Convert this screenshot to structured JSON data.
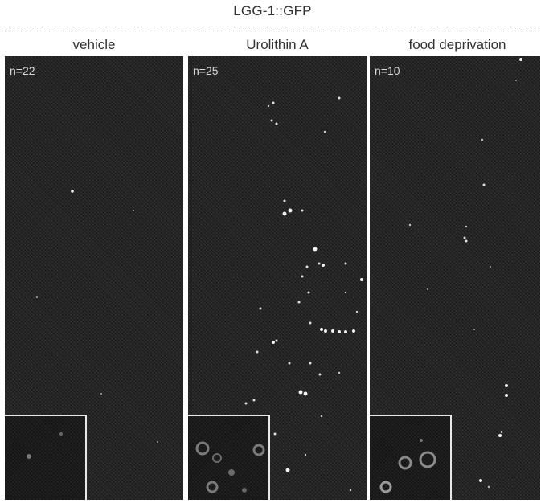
{
  "figure": {
    "title": "LGG-1::GFP",
    "colors": {
      "panel_background": "#262626",
      "puncta": "#f2f2f2",
      "inset_border": "#e8e8e8"
    }
  },
  "panels": [
    {
      "label": "vehicle",
      "count": "n=22"
    },
    {
      "label": "Urolithin A",
      "count": "n=25"
    },
    {
      "label": "food deprivation",
      "count": "n=10"
    }
  ]
}
